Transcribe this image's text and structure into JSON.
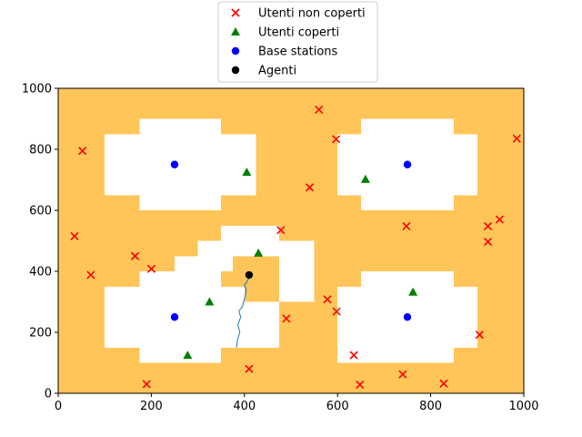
{
  "chart_data": {
    "type": "scatter",
    "xlim": [
      0,
      1000
    ],
    "ylim": [
      0,
      1000
    ],
    "x_ticks": [
      0,
      200,
      400,
      600,
      800,
      1000
    ],
    "y_ticks": [
      0,
      200,
      400,
      600,
      800,
      1000
    ],
    "grid": false,
    "legend_position": "top-center",
    "colors": {
      "background_area": "#ffc559",
      "free_area": "#ffffff",
      "uncovered": "#ff0000",
      "covered": "#008000",
      "base_station": "#0000ff",
      "agent": "#000000",
      "trajectory": "#1f77b4"
    },
    "regions": [
      {
        "name": "top-left",
        "rects": [
          [
            100,
            650,
            425,
            850
          ],
          [
            175,
            600,
            350,
            900
          ]
        ]
      },
      {
        "name": "top-right",
        "rects": [
          [
            600,
            650,
            900,
            850
          ],
          [
            650,
            600,
            850,
            900
          ]
        ]
      },
      {
        "name": "bottom-right",
        "rects": [
          [
            600,
            150,
            900,
            350
          ],
          [
            650,
            100,
            850,
            400
          ],
          [
            600,
            100,
            650,
            150
          ]
        ]
      },
      {
        "name": "bottom-left",
        "rects": [
          [
            100,
            150,
            400,
            350
          ],
          [
            175,
            100,
            350,
            400
          ],
          [
            250,
            400,
            375,
            450
          ],
          [
            300,
            450,
            550,
            500
          ],
          [
            350,
            500,
            475,
            550
          ],
          [
            375,
            250,
            475,
            300
          ],
          [
            475,
            300,
            550,
            450
          ],
          [
            475,
            450,
            550,
            500
          ],
          [
            400,
            250,
            475,
            300
          ],
          [
            400,
            150,
            475,
            250
          ]
        ]
      }
    ],
    "series": [
      {
        "name": "Utenti non coperti",
        "marker": "x",
        "points": [
          [
            560,
            930
          ],
          [
            52,
            795
          ],
          [
            597,
            833
          ],
          [
            985,
            835
          ],
          [
            540,
            675
          ],
          [
            35,
            515
          ],
          [
            478,
            535
          ],
          [
            748,
            548
          ],
          [
            923,
            548
          ],
          [
            948,
            570
          ],
          [
            923,
            497
          ],
          [
            165,
            450
          ],
          [
            200,
            408
          ],
          [
            70,
            388
          ],
          [
            578,
            308
          ],
          [
            598,
            268
          ],
          [
            490,
            245
          ],
          [
            905,
            192
          ],
          [
            635,
            125
          ],
          [
            410,
            80
          ],
          [
            190,
            30
          ],
          [
            648,
            28
          ],
          [
            740,
            62
          ],
          [
            828,
            32
          ]
        ]
      },
      {
        "name": "Utenti coperti",
        "marker": "triangle",
        "points": [
          [
            405,
            725
          ],
          [
            660,
            702
          ],
          [
            430,
            460
          ],
          [
            325,
            300
          ],
          [
            762,
            332
          ],
          [
            278,
            125
          ]
        ]
      },
      {
        "name": "Base stations",
        "marker": "circle",
        "points": [
          [
            250,
            750
          ],
          [
            750,
            750
          ],
          [
            250,
            250
          ],
          [
            750,
            250
          ]
        ]
      },
      {
        "name": "Agenti",
        "marker": "circle",
        "points": [
          [
            410,
            388
          ]
        ]
      }
    ],
    "trajectory": [
      [
        383,
        150
      ],
      [
        385,
        175
      ],
      [
        390,
        200
      ],
      [
        386,
        225
      ],
      [
        392,
        250
      ],
      [
        388,
        270
      ],
      [
        396,
        285
      ],
      [
        398,
        300
      ],
      [
        402,
        320
      ],
      [
        404,
        340
      ],
      [
        400,
        355
      ],
      [
        406,
        368
      ],
      [
        410,
        378
      ],
      [
        410,
        388
      ]
    ]
  }
}
